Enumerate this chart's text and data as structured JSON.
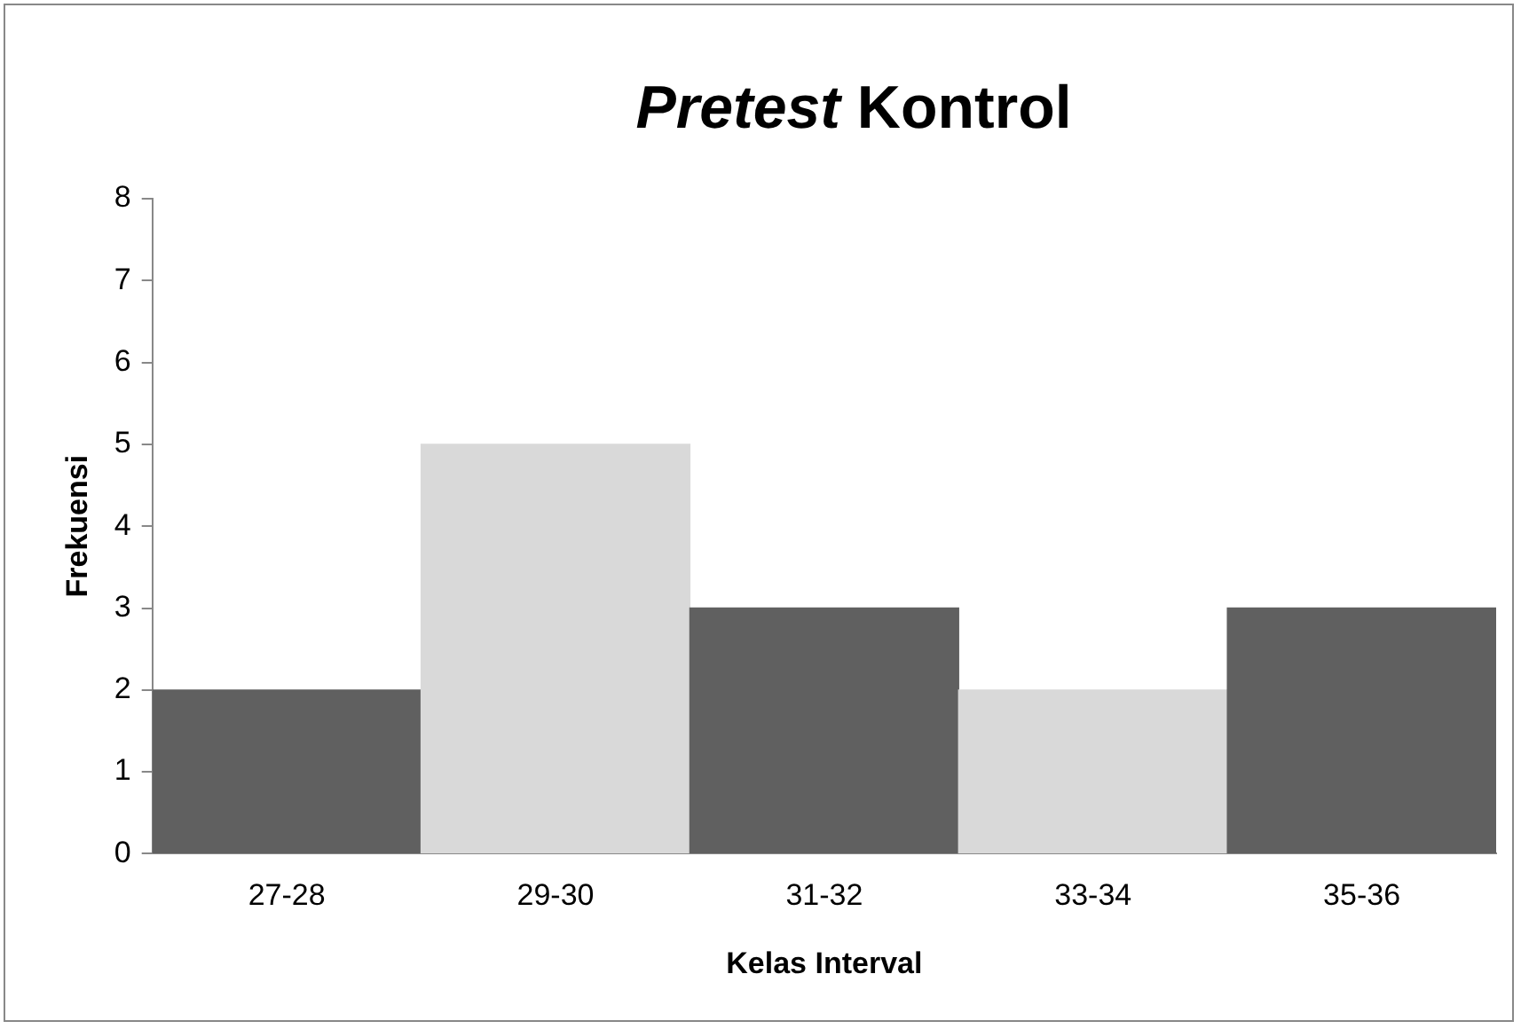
{
  "chart_data": {
    "type": "bar",
    "title": "Pretest Kontrol",
    "xlabel": "Kelas Interval",
    "ylabel": "Frekuensi",
    "categories": [
      "27-28",
      "29-30",
      "31-32",
      "33-34",
      "35-36"
    ],
    "values": [
      2,
      5,
      3,
      2,
      3
    ],
    "colors": [
      "#606060",
      "#d9d9d9",
      "#606060",
      "#d9d9d9",
      "#606060"
    ],
    "ylim": [
      0,
      8
    ],
    "yticks": [
      0,
      1,
      2,
      3,
      4,
      5,
      6,
      7,
      8
    ],
    "grid": false
  }
}
